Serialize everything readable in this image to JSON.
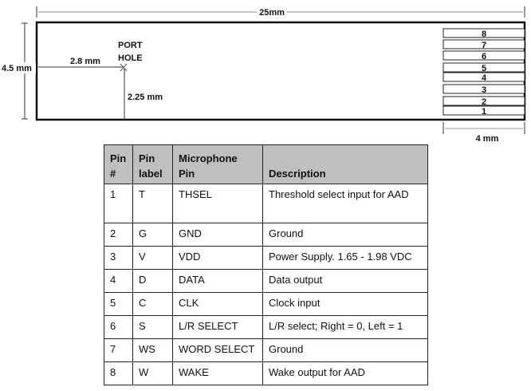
{
  "diagram": {
    "total_length": "25mm",
    "height": "4.5 mm",
    "port_label_line1": "PORT",
    "port_label_line2": "HOLE",
    "port_x_offset": "2.8 mm",
    "port_y_offset": "2.25 mm",
    "pad_width": "4 mm",
    "pads": [
      "8",
      "7",
      "6",
      "5",
      "4",
      "3",
      "2",
      "1"
    ]
  },
  "table": {
    "headers": {
      "pin_line1": "Pin",
      "pin_line2": "#",
      "label_line1": "Pin",
      "label_line2": "label",
      "mic_line1": "Microphone",
      "mic_line2": "Pin",
      "description": "Description"
    },
    "rows": [
      {
        "pin": "1",
        "label": "T",
        "mic": "THSEL",
        "desc": "Threshold select input for AAD"
      },
      {
        "pin": "2",
        "label": "G",
        "mic": "GND",
        "desc": "Ground"
      },
      {
        "pin": "3",
        "label": "V",
        "mic": "VDD",
        "desc": "Power Supply. 1.65 - 1.98 VDC"
      },
      {
        "pin": "4",
        "label": "D",
        "mic": "DATA",
        "desc": "Data output"
      },
      {
        "pin": "5",
        "label": "C",
        "mic": "CLK",
        "desc": "Clock input"
      },
      {
        "pin": "6",
        "label": "S",
        "mic": "L/R SELECT",
        "desc": "L/R select; Right = 0, Left = 1"
      },
      {
        "pin": "7",
        "label": "WS",
        "mic": "WORD SELECT",
        "desc": "Ground"
      },
      {
        "pin": "8",
        "label": "W",
        "mic": "WAKE",
        "desc": "Wake output for AAD"
      }
    ]
  }
}
